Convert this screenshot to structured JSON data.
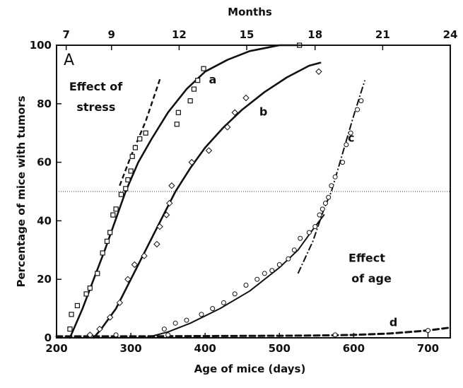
{
  "chart_data": {
    "type": "scatter",
    "panel_label": "A",
    "xlabel": "Age of mice (days)",
    "ylabel": "Percentage of mice with tumors",
    "top_axis_title": "Months",
    "xlim": [
      200,
      730
    ],
    "ylim": [
      0,
      100
    ],
    "x_ticks": [
      200,
      300,
      400,
      500,
      600,
      700
    ],
    "y_ticks": [
      0,
      20,
      40,
      60,
      80,
      100
    ],
    "top_ticks": [
      {
        "label": "7",
        "day": 213
      },
      {
        "label": "9",
        "day": 274
      },
      {
        "label": "12",
        "day": 365
      },
      {
        "label": "15",
        "day": 456
      },
      {
        "label": "18",
        "day": 548
      },
      {
        "label": "21",
        "day": 639
      },
      {
        "label": "24",
        "day": 730
      }
    ],
    "reference_line_y": 50,
    "annotations": [
      {
        "text": "Effect of",
        "x": 217,
        "y": 84.5
      },
      {
        "text": "stress",
        "x": 227,
        "y": 77.5
      },
      {
        "text": "Effect",
        "x": 593,
        "y": 26
      },
      {
        "text": "of age",
        "x": 597,
        "y": 19
      }
    ],
    "series": [
      {
        "name": "a",
        "label_pos": [
          405,
          87
        ],
        "curve": [
          [
            218,
            0
          ],
          [
            235,
            10
          ],
          [
            250,
            20
          ],
          [
            265,
            30
          ],
          [
            279,
            40
          ],
          [
            293,
            50
          ],
          [
            310,
            60
          ],
          [
            328,
            68
          ],
          [
            350,
            77
          ],
          [
            375,
            85
          ],
          [
            400,
            91
          ],
          [
            430,
            95
          ],
          [
            460,
            98
          ],
          [
            500,
            100
          ],
          [
            530,
            100
          ]
        ],
        "points": [
          [
            218,
            3
          ],
          [
            220,
            8
          ],
          [
            228,
            11
          ],
          [
            240,
            15
          ],
          [
            245,
            17
          ],
          [
            255,
            22
          ],
          [
            262,
            29
          ],
          [
            268,
            33
          ],
          [
            272,
            36
          ],
          [
            276,
            42
          ],
          [
            280,
            44
          ],
          [
            287,
            49
          ],
          [
            293,
            51
          ],
          [
            296,
            54
          ],
          [
            300,
            57
          ],
          [
            302,
            62
          ],
          [
            306,
            65
          ],
          [
            312,
            68
          ],
          [
            320,
            70
          ],
          [
            362,
            73
          ],
          [
            364,
            77
          ],
          [
            380,
            81
          ],
          [
            385,
            85
          ],
          [
            390,
            88
          ],
          [
            398,
            92
          ],
          [
            527,
            100
          ]
        ]
      },
      {
        "name": "b",
        "label_pos": [
          473,
          76
        ],
        "curve": [
          [
            250,
            0
          ],
          [
            260,
            3
          ],
          [
            280,
            10
          ],
          [
            300,
            20
          ],
          [
            320,
            30
          ],
          [
            340,
            40
          ],
          [
            360,
            50
          ],
          [
            380,
            58
          ],
          [
            400,
            65
          ],
          [
            425,
            72
          ],
          [
            450,
            78
          ],
          [
            480,
            84
          ],
          [
            510,
            89
          ],
          [
            540,
            93
          ],
          [
            555,
            94
          ]
        ],
        "points": [
          [
            245,
            1
          ],
          [
            258,
            3
          ],
          [
            272,
            7
          ],
          [
            285,
            12
          ],
          [
            296,
            20
          ],
          [
            305,
            25
          ],
          [
            318,
            28
          ],
          [
            335,
            32
          ],
          [
            339,
            38
          ],
          [
            348,
            42
          ],
          [
            352,
            46
          ],
          [
            355,
            52
          ],
          [
            382,
            60
          ],
          [
            405,
            64
          ],
          [
            430,
            72
          ],
          [
            440,
            77
          ],
          [
            455,
            82
          ],
          [
            553,
            91
          ]
        ]
      },
      {
        "name": "c",
        "label_pos": [
          592,
          67
        ],
        "curve": [
          [
            320,
            0
          ],
          [
            350,
            2
          ],
          [
            380,
            5
          ],
          [
            420,
            10
          ],
          [
            460,
            16
          ],
          [
            500,
            24
          ],
          [
            525,
            30
          ],
          [
            545,
            37
          ],
          [
            560,
            42
          ]
        ],
        "curve2": [
          [
            525,
            22
          ],
          [
            545,
            33
          ],
          [
            560,
            44
          ],
          [
            570,
            50
          ],
          [
            585,
            63
          ],
          [
            600,
            76
          ],
          [
            615,
            88
          ]
        ],
        "points": [
          [
            345,
            3
          ],
          [
            360,
            5
          ],
          [
            375,
            6
          ],
          [
            395,
            8
          ],
          [
            410,
            10
          ],
          [
            425,
            12
          ],
          [
            440,
            15
          ],
          [
            455,
            18
          ],
          [
            470,
            20
          ],
          [
            480,
            22
          ],
          [
            490,
            23
          ],
          [
            500,
            25
          ],
          [
            512,
            27
          ],
          [
            520,
            30
          ],
          [
            528,
            34
          ],
          [
            540,
            36
          ],
          [
            548,
            38
          ],
          [
            554,
            42
          ],
          [
            558,
            44
          ],
          [
            562,
            46
          ],
          [
            566,
            48
          ],
          [
            570,
            52
          ],
          [
            575,
            55
          ],
          [
            585,
            60
          ],
          [
            590,
            66
          ],
          [
            596,
            70
          ],
          [
            605,
            78
          ],
          [
            610,
            81
          ]
        ]
      },
      {
        "name": "d",
        "label_pos": [
          648,
          4
        ],
        "curve": [
          [
            200,
            0.5
          ],
          [
            300,
            0.5
          ],
          [
            400,
            0.6
          ],
          [
            500,
            0.7
          ],
          [
            550,
            0.8
          ],
          [
            600,
            1
          ],
          [
            650,
            1.5
          ],
          [
            700,
            2.5
          ],
          [
            730,
            3.5
          ]
        ],
        "points": [
          [
            280,
            1
          ],
          [
            350,
            1
          ],
          [
            575,
            1
          ],
          [
            700,
            2.5
          ]
        ]
      }
    ]
  }
}
